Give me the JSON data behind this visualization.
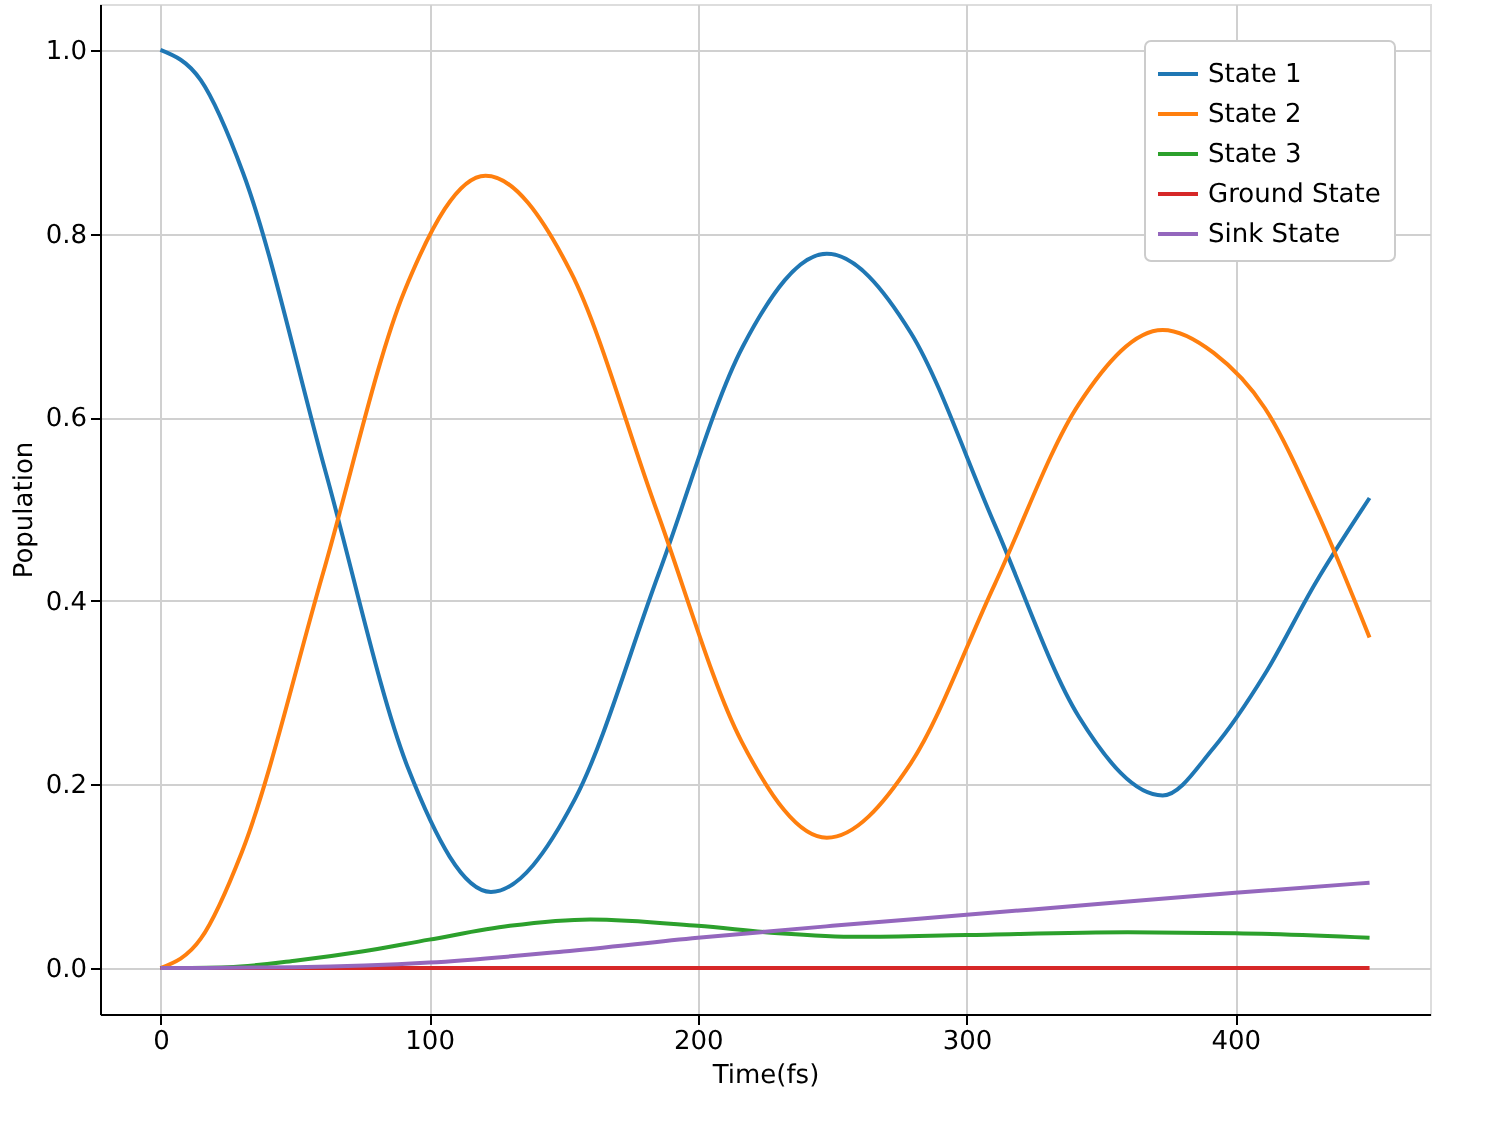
{
  "chart_data": {
    "type": "line",
    "xlabel": "Time(fs)",
    "ylabel": "Population",
    "xlim": [
      -22.5,
      472.5
    ],
    "ylim": [
      -0.05,
      1.05
    ],
    "xticks": [
      0,
      100,
      200,
      300,
      400
    ],
    "yticks": [
      {
        "value": 0,
        "label": "0.0"
      },
      {
        "value": 0.2,
        "label": "0.2"
      },
      {
        "value": 0.4,
        "label": "0.4"
      },
      {
        "value": 0.6,
        "label": "0.6"
      },
      {
        "value": 0.8,
        "label": "0.8"
      },
      {
        "value": 1,
        "label": "1.0"
      }
    ],
    "grid": true,
    "legend": "top right",
    "marker": "none",
    "line_style": "solid",
    "series": [
      {
        "name": "State 1",
        "color": "#1f77b4",
        "x": [
          0,
          15,
          30.75,
          61.5,
          92.25,
          123,
          154.25,
          185.5,
          216.75,
          248,
          279.25,
          310.5,
          341.75,
          373,
          392,
          411,
          430,
          450
        ],
        "values": [
          1.0,
          0.967,
          0.866,
          0.54,
          0.217,
          0.083,
          0.184,
          0.43,
          0.677,
          0.778,
          0.692,
          0.483,
          0.274,
          0.188,
          0.24,
          0.32,
          0.42,
          0.512
        ]
      },
      {
        "name": "State 2",
        "color": "#ff7f0e",
        "x": [
          0,
          15,
          30.25,
          60.5,
          90.75,
          121,
          152.75,
          184.5,
          216.25,
          248,
          279.25,
          310.5,
          341.75,
          373,
          392,
          411,
          430,
          450
        ],
        "values": [
          0.0,
          0.032,
          0.126,
          0.43,
          0.737,
          0.863,
          0.758,
          0.5,
          0.247,
          0.142,
          0.223,
          0.418,
          0.614,
          0.695,
          0.67,
          0.61,
          0.5,
          0.36
        ]
      },
      {
        "name": "State 3",
        "color": "#2ca02c",
        "x": [
          0,
          25,
          50,
          75,
          100,
          130,
          160,
          200,
          230,
          260,
          300,
          360,
          400,
          450
        ],
        "values": [
          0.0,
          0.001,
          0.008,
          0.018,
          0.031,
          0.046,
          0.053,
          0.046,
          0.038,
          0.034,
          0.036,
          0.039,
          0.038,
          0.033
        ]
      },
      {
        "name": "Ground State",
        "color": "#d62728",
        "x": [
          0,
          450
        ],
        "values": [
          0.0,
          0.0
        ]
      },
      {
        "name": "Sink State",
        "color": "#9467bd",
        "x": [
          0,
          50,
          100,
          150,
          200,
          250,
          300,
          350,
          400,
          450
        ],
        "values": [
          0.0,
          0.001,
          0.006,
          0.018,
          0.033,
          0.046,
          0.058,
          0.07,
          0.082,
          0.093
        ]
      }
    ]
  }
}
